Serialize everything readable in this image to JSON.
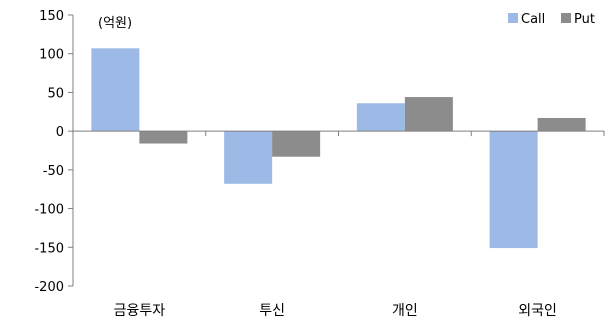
{
  "chart_data": {
    "type": "bar",
    "unit_note": "(억원)",
    "categories": [
      "금융투자",
      "투신",
      "개인",
      "외국인"
    ],
    "series": [
      {
        "name": "Call",
        "color": "#9db9e6",
        "values": [
          107,
          -68,
          36,
          -151
        ]
      },
      {
        "name": "Put",
        "color": "#8c8c8c",
        "values": [
          -16,
          -33,
          44,
          17
        ]
      }
    ],
    "ylim": [
      -200,
      150
    ],
    "yticks": [
      150,
      100,
      50,
      0,
      -50,
      -100,
      -150,
      -200
    ],
    "ytick_labels": [
      "150",
      "100",
      "50",
      "0",
      "-50",
      "-100",
      "-150",
      "-200"
    ],
    "grid": false,
    "legend_position": "top-right"
  }
}
